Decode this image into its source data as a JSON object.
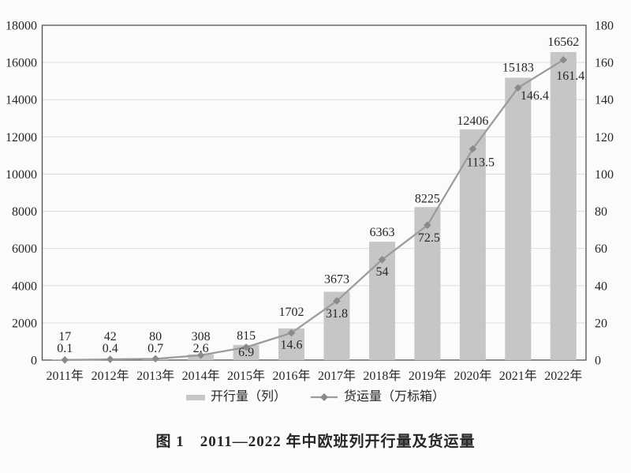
{
  "figure": {
    "caption": "图 1　2011—2022 年中欧班列开行量及货运量"
  },
  "chart_data": {
    "type": "bar",
    "combo": "bar+line, dual axis",
    "title": "图 1　2011—2022 年中欧班列开行量及货运量",
    "categories": [
      "2011年",
      "2012年",
      "2013年",
      "2014年",
      "2015年",
      "2016年",
      "2017年",
      "2018年",
      "2019年",
      "2020年",
      "2021年",
      "2022年"
    ],
    "series": [
      {
        "name": "开行量（列）",
        "type": "bar",
        "axis": "left",
        "values": [
          17,
          42,
          80,
          308,
          815,
          1702,
          3673,
          6363,
          8225,
          12406,
          15183,
          16562
        ]
      },
      {
        "name": "货运量（万标箱）",
        "type": "line",
        "axis": "right",
        "values": [
          0.1,
          0.4,
          0.7,
          2.6,
          6.9,
          14.6,
          31.8,
          54,
          72.5,
          113.5,
          146.4,
          161.4
        ]
      }
    ],
    "left_axis": {
      "min": 0,
      "max": 18000,
      "step": 2000
    },
    "right_axis": {
      "min": 0,
      "max": 180,
      "step": 20
    },
    "grid": true,
    "data_labels": true,
    "legend_position": "bottom",
    "colors": {
      "bar": "#c6c6c6",
      "line": "#9b9b9b",
      "marker": "#8a8a8a",
      "grid": "#dcdcdc",
      "frame": "#4f4f4f",
      "text": "#262626",
      "background": "#fcfbf9"
    }
  }
}
